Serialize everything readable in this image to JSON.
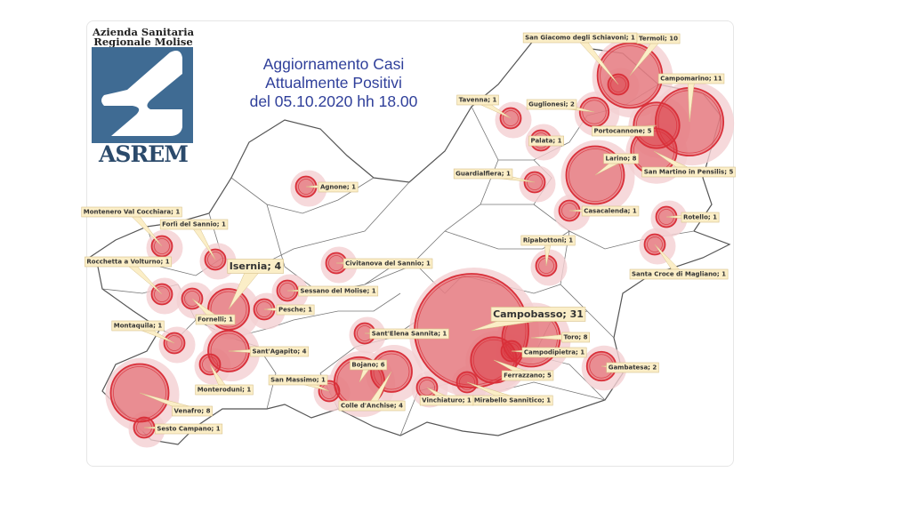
{
  "logo": {
    "line1": "Azienda Sanitaria",
    "line2": "Regionale Molise",
    "wordmark": "ASREM",
    "color": "#3f6b93"
  },
  "title": {
    "line1": "Aggiornamento Casi",
    "line2": "Attualmente Positivi",
    "line3": "del 05.10.2020 hh 18.00"
  },
  "colors": {
    "circle_fill": "#d9303a",
    "municipality_fill": "#f4cfd2",
    "label_bg": "#fbeec7",
    "title": "#2f3f9a"
  },
  "municipalities": [
    {
      "name": "San Giacomo degli Schiavoni",
      "cases": 1
    },
    {
      "name": "Termoli",
      "cases": 10
    },
    {
      "name": "Campomarino",
      "cases": 11
    },
    {
      "name": "Guglionesi",
      "cases": 2
    },
    {
      "name": "Portocannone",
      "cases": 5
    },
    {
      "name": "San Martino in Pensilis",
      "cases": 5
    },
    {
      "name": "Tavenna",
      "cases": 1
    },
    {
      "name": "Palata",
      "cases": 1
    },
    {
      "name": "Larino",
      "cases": 8
    },
    {
      "name": "Guardialfiera",
      "cases": 1
    },
    {
      "name": "Casacalenda",
      "cases": 1
    },
    {
      "name": "Rotello",
      "cases": 1
    },
    {
      "name": "Santa Croce di Magliano",
      "cases": 1
    },
    {
      "name": "Ripabottoni",
      "cases": 1
    },
    {
      "name": "Agnone",
      "cases": 1
    },
    {
      "name": "Montenero Val Cocchiara",
      "cases": 1
    },
    {
      "name": "Forlì del Sannio",
      "cases": 1
    },
    {
      "name": "Rocchetta a Volturno",
      "cases": 1
    },
    {
      "name": "Isernia",
      "cases": 4,
      "highlight": true
    },
    {
      "name": "Fornelli",
      "cases": 1
    },
    {
      "name": "Pesche",
      "cases": 1
    },
    {
      "name": "Sessano del Molise",
      "cases": 1
    },
    {
      "name": "Civitanova del Sannio",
      "cases": 1
    },
    {
      "name": "Montaquila",
      "cases": 1
    },
    {
      "name": "Sant'Agapito",
      "cases": 4
    },
    {
      "name": "Monteroduni",
      "cases": 1
    },
    {
      "name": "Venafro",
      "cases": 8
    },
    {
      "name": "Sesto Campano",
      "cases": 1
    },
    {
      "name": "Sant'Elena Sannita",
      "cases": 1
    },
    {
      "name": "Campobasso",
      "cases": 31,
      "highlight": true
    },
    {
      "name": "Toro",
      "cases": 8
    },
    {
      "name": "Campodipietra",
      "cases": 1
    },
    {
      "name": "Ferrazzano",
      "cases": 5
    },
    {
      "name": "Mirabello Sannitico",
      "cases": 1
    },
    {
      "name": "Gambatesa",
      "cases": 2
    },
    {
      "name": "Vinchiaturo",
      "cases": 1
    },
    {
      "name": "Bojano",
      "cases": 6
    },
    {
      "name": "Colle d'Anchise",
      "cases": 4
    },
    {
      "name": "San Massimo",
      "cases": 1
    }
  ]
}
